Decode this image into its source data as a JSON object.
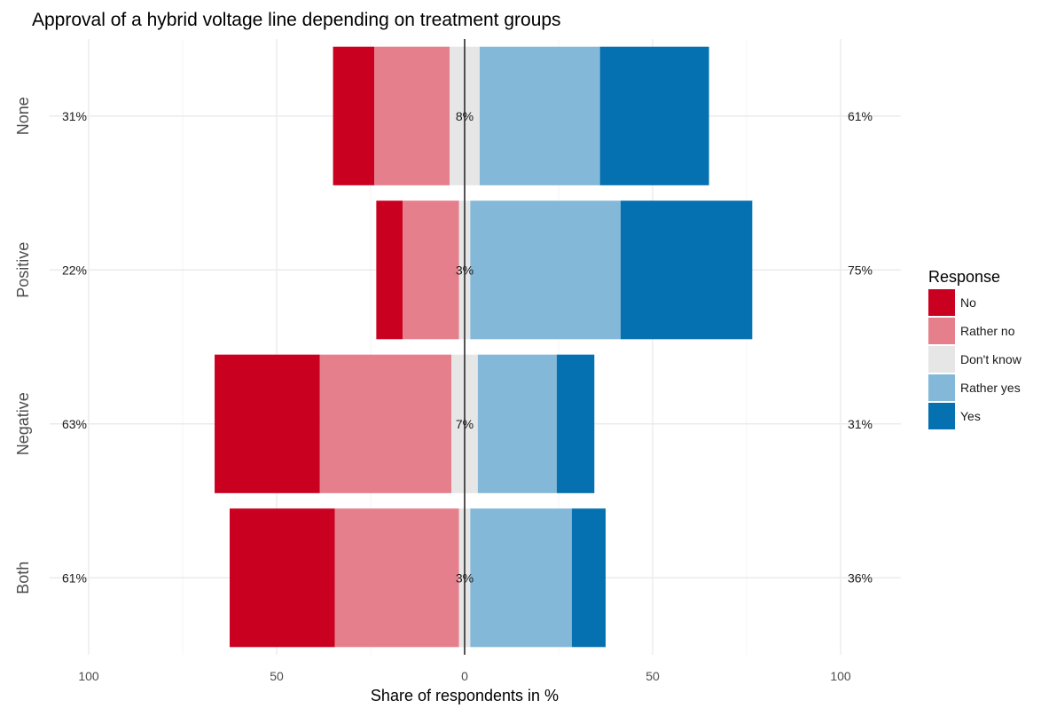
{
  "chart_data": {
    "type": "bar",
    "orientation": "horizontal",
    "stacked": "diverging",
    "title": "Approval of a hybrid voltage line depending on treatment groups",
    "xlabel": "Share of respondents in %",
    "ylabel": "",
    "xlim": [
      -100,
      100
    ],
    "xticks": [
      {
        "value": -100,
        "label": "100"
      },
      {
        "value": -50,
        "label": "50"
      },
      {
        "value": 0,
        "label": "0"
      },
      {
        "value": 50,
        "label": "50"
      },
      {
        "value": 100,
        "label": "100"
      }
    ],
    "grid": true,
    "legend": {
      "title": "Response",
      "position": "right",
      "entries": [
        "No",
        "Rather no",
        "Don't know",
        "Rather yes",
        "Yes"
      ]
    },
    "categories": [
      "None",
      "Positive",
      "Negative",
      "Both"
    ],
    "series": [
      {
        "name": "No",
        "color": "#ca0020",
        "values": [
          11,
          7,
          28,
          28
        ]
      },
      {
        "name": "Rather no",
        "color": "#e57f8c",
        "values": [
          20,
          15,
          35,
          33
        ]
      },
      {
        "name": "Don't know",
        "color": "#e6e6e6",
        "values": [
          8,
          3,
          7,
          3
        ]
      },
      {
        "name": "Rather yes",
        "color": "#84b8d8",
        "values": [
          32,
          40,
          21,
          27
        ]
      },
      {
        "name": "Yes",
        "color": "#0571b0",
        "values": [
          29,
          35,
          10,
          9
        ]
      }
    ],
    "left_labels": [
      "31%",
      "22%",
      "63%",
      "61%"
    ],
    "center_labels": [
      "8%",
      "3%",
      "7%",
      "3%"
    ],
    "right_labels": [
      "61%",
      "75%",
      "31%",
      "36%"
    ]
  }
}
